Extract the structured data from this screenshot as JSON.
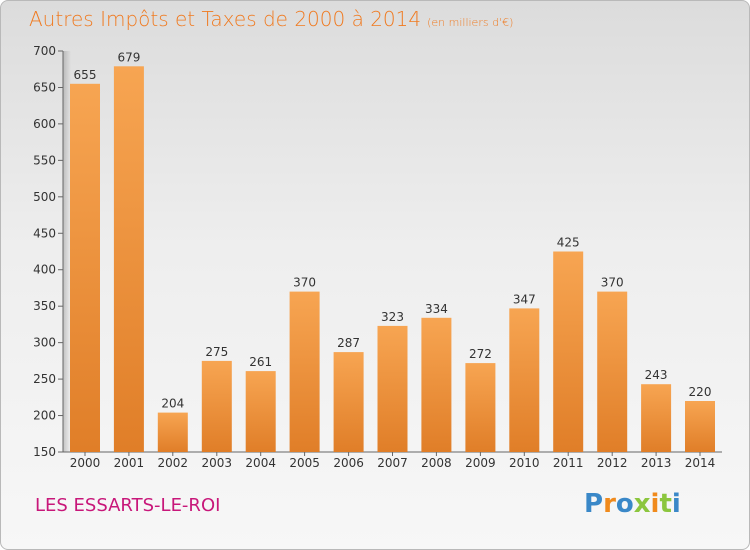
{
  "title": "Autres Impôts et Taxes de 2000 à 2014",
  "title_unit": "(en milliers d'€)",
  "city": "LES ESSARTS-LE-ROI",
  "brand": "Proxiti",
  "colors": {
    "title": "#f07a20",
    "bar_light": "#f7a552",
    "bar_dark": "#e07e28",
    "city": "#c8177a",
    "brand_letters": [
      "#3a88c8",
      "#f08a1c",
      "#3a88c8",
      "#8cc63e",
      "#f08a1c",
      "#8cc63e",
      "#3a88c8"
    ]
  },
  "chart_data": {
    "type": "bar",
    "categories": [
      "2000",
      "2001",
      "2002",
      "2003",
      "2004",
      "2005",
      "2006",
      "2007",
      "2008",
      "2009",
      "2010",
      "2011",
      "2012",
      "2013",
      "2014"
    ],
    "values": [
      655,
      679,
      204,
      275,
      261,
      370,
      287,
      323,
      334,
      272,
      347,
      425,
      370,
      243,
      220
    ],
    "ylim": [
      150,
      700
    ],
    "yticks": [
      150,
      200,
      250,
      300,
      350,
      400,
      450,
      500,
      550,
      600,
      650,
      700
    ],
    "grid": false,
    "xlabel": "",
    "ylabel": ""
  }
}
